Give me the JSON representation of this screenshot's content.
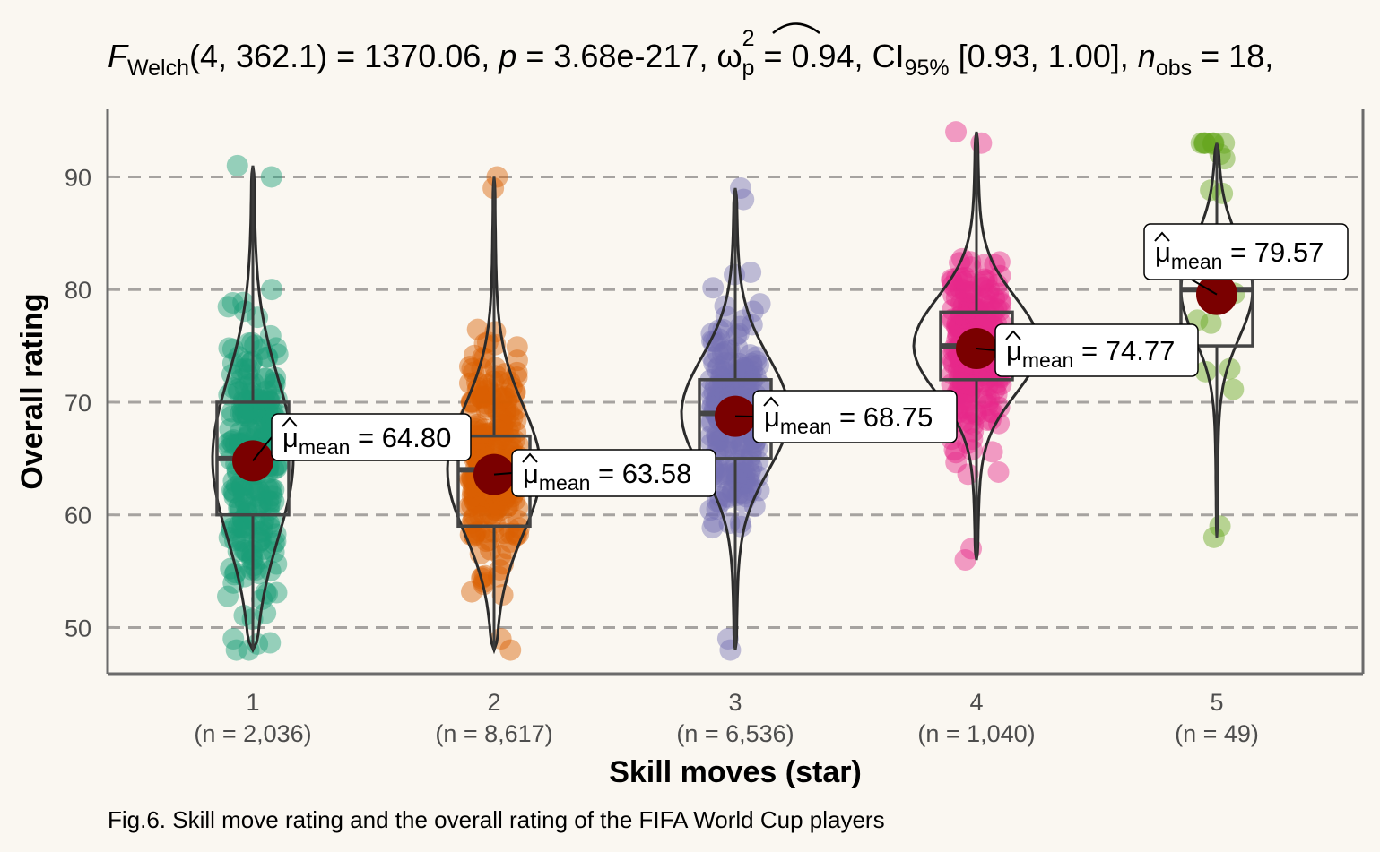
{
  "chart_data": {
    "type": "violin-box-scatter",
    "subtitle": {
      "f_symbol": "F",
      "f_sub": "Welch",
      "f_args": "(4, 362.1)",
      "statistic": "1370.06",
      "p_symbol": "p",
      "p_value": "3.68e-217",
      "effect_symbol": "ω",
      "effect_sup": "2",
      "effect_sub": "p",
      "effect_value": "0.94",
      "ci_symbol": "CI",
      "ci_sub": "95%",
      "ci_value": "[0.93, 1.00]",
      "n_symbol": "n",
      "n_sub": "obs",
      "n_value": "18,"
    },
    "xlabel": "Skill moves (star)",
    "ylabel": "Overall rating",
    "caption": "Fig.6. Skill move rating and the overall rating of the FIFA World Cup players",
    "ylim": [
      45.9,
      96
    ],
    "y_ticks": [
      50,
      60,
      70,
      80,
      90
    ],
    "grid": "horizontal-dashed",
    "mean_symbol": "μ",
    "mean_sub": "mean",
    "groups": [
      {
        "category": "1",
        "n_label": "(n = 2,036)",
        "color": "#1B9E77",
        "min": 48,
        "max": 91,
        "q1": 60,
        "median": 65,
        "q3": 70,
        "mean": 64.8,
        "mean_label": "64.80"
      },
      {
        "category": "2",
        "n_label": "(n = 8,617)",
        "color": "#D95F02",
        "min": 48,
        "max": 90,
        "q1": 59,
        "median": 64,
        "q3": 67,
        "mean": 63.58,
        "mean_label": "63.58"
      },
      {
        "category": "3",
        "n_label": "(n = 6,536)",
        "color": "#7570B3",
        "min": 48,
        "max": 89,
        "q1": 65,
        "median": 69,
        "q3": 72,
        "mean": 68.75,
        "mean_label": "68.75"
      },
      {
        "category": "4",
        "n_label": "(n = 1,040)",
        "color": "#E7298A",
        "min": 56,
        "max": 94,
        "q1": 72,
        "median": 75,
        "q3": 78,
        "mean": 74.77,
        "mean_label": "74.77"
      },
      {
        "category": "5",
        "n_label": "(n = 49)",
        "color": "#66A61E",
        "min": 58,
        "max": 93,
        "q1": 75,
        "median": 80,
        "q3": 81,
        "mean": 79.57,
        "mean_label": "79.57"
      }
    ]
  }
}
